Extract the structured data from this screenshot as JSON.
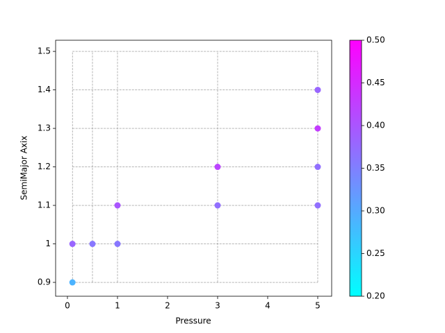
{
  "chart_data": {
    "type": "scatter",
    "xlabel": "Pressure",
    "ylabel": "SemiMajor Axix",
    "x": [
      0.1,
      0.1,
      0.5,
      1,
      1,
      3,
      3,
      5,
      5,
      5,
      5
    ],
    "y": [
      0.9,
      1.0,
      1.0,
      1.0,
      1.1,
      1.1,
      1.2,
      1.1,
      1.2,
      1.3,
      1.4
    ],
    "c": [
      0.29,
      0.38,
      0.36,
      0.36,
      0.4,
      0.37,
      0.42,
      0.37,
      0.37,
      0.43,
      0.38
    ],
    "cmap": "cool",
    "xlim": [
      -0.236,
      5.278
    ],
    "ylim": [
      0.864,
      1.529
    ],
    "xticks": [
      0,
      1,
      2,
      3,
      4,
      5
    ],
    "yticks": [
      0.9,
      1.0,
      1.1,
      1.2,
      1.3,
      1.4,
      1.5
    ],
    "grid_x": [
      0.1,
      0.5,
      1,
      3,
      5
    ],
    "grid_y": [
      0.9,
      1.0,
      1.1,
      1.2,
      1.3,
      1.4,
      1.5
    ],
    "clim": [
      0.2,
      0.5
    ],
    "cticks": [
      {
        "value": 0.2,
        "label": "0.20"
      },
      0.25,
      {
        "value": 0.3,
        "label": "0.30"
      },
      0.35,
      {
        "value": 0.4,
        "label": "0.40"
      },
      0.45,
      {
        "value": 0.5,
        "label": "0.50"
      }
    ]
  }
}
